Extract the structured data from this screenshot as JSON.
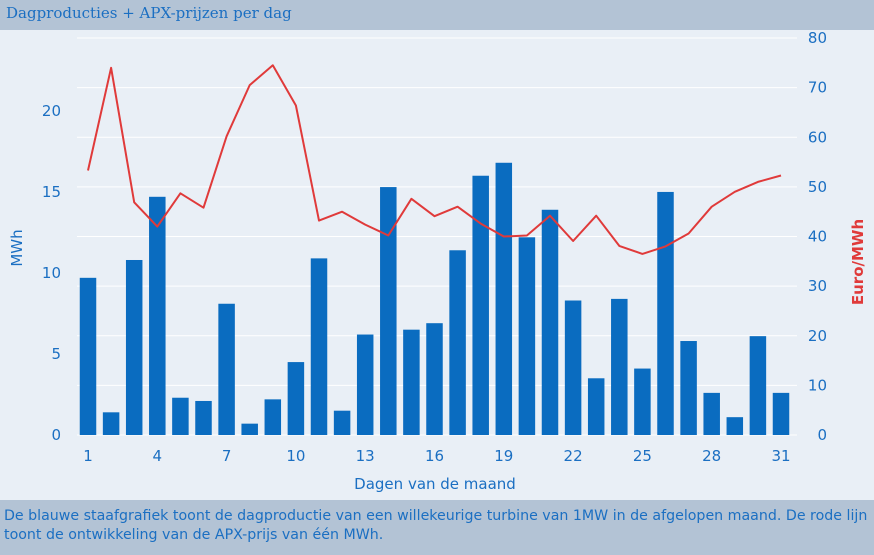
{
  "header": {
    "title": "Dagproducties + APX-prijzen per dag"
  },
  "footer": {
    "caption": "De blauwe staafgrafiek toont de dagproductie van een willekeurige turbine van 1MW in de afgelopen maand. De rode lijn toont de ontwikkeling van de APX-prijs van één MWh."
  },
  "colors": {
    "bar": "#0a6cc0",
    "line": "#e03a3a",
    "left_axis": "#1b6fc2",
    "right_axis": "#e03a3a",
    "grid": "#ffffff",
    "background": "#e9eff6"
  },
  "chart_data": {
    "type": "bar",
    "xlabel": "Dagen van de maand",
    "ylabel": "MWh",
    "y2label": "Euro/MWh",
    "x": [
      1,
      2,
      3,
      4,
      5,
      6,
      7,
      8,
      9,
      10,
      11,
      12,
      13,
      14,
      15,
      16,
      17,
      18,
      19,
      20,
      21,
      22,
      23,
      24,
      25,
      26,
      27,
      28,
      29,
      30,
      31
    ],
    "xticks": [
      "1",
      "4",
      "7",
      "10",
      "13",
      "16",
      "19",
      "22",
      "25",
      "28",
      "31"
    ],
    "ylim": [
      0,
      24.5
    ],
    "yticks": [
      "0",
      "5",
      "10",
      "15",
      "20"
    ],
    "y2lim": [
      0,
      80
    ],
    "y2ticks": [
      "0",
      "10",
      "20",
      "30",
      "40",
      "50",
      "60",
      "70",
      "80"
    ],
    "grid": true,
    "series": [
      {
        "type": "bar",
        "axis": "left",
        "values": [
          9.7,
          1.4,
          10.8,
          14.7,
          2.3,
          2.1,
          8.1,
          0.7,
          2.2,
          4.5,
          10.9,
          1.5,
          6.2,
          15.3,
          6.5,
          6.9,
          11.4,
          16.0,
          16.8,
          12.2,
          13.9,
          8.3,
          3.5,
          8.4,
          4.1,
          15.0,
          5.8,
          2.6,
          1.1,
          6.1,
          2.6
        ]
      },
      {
        "type": "line",
        "axis": "right",
        "values": [
          53.3,
          74.0,
          46.9,
          42.0,
          48.7,
          45.8,
          60.2,
          70.5,
          74.5,
          66.4,
          43.2,
          45.0,
          42.4,
          40.2,
          47.6,
          44.1,
          46.0,
          42.6,
          40.0,
          40.2,
          44.2,
          39.1,
          44.2,
          38.1,
          36.5,
          38.0,
          40.6,
          46.0,
          49.0,
          51.0,
          52.3
        ]
      }
    ]
  }
}
